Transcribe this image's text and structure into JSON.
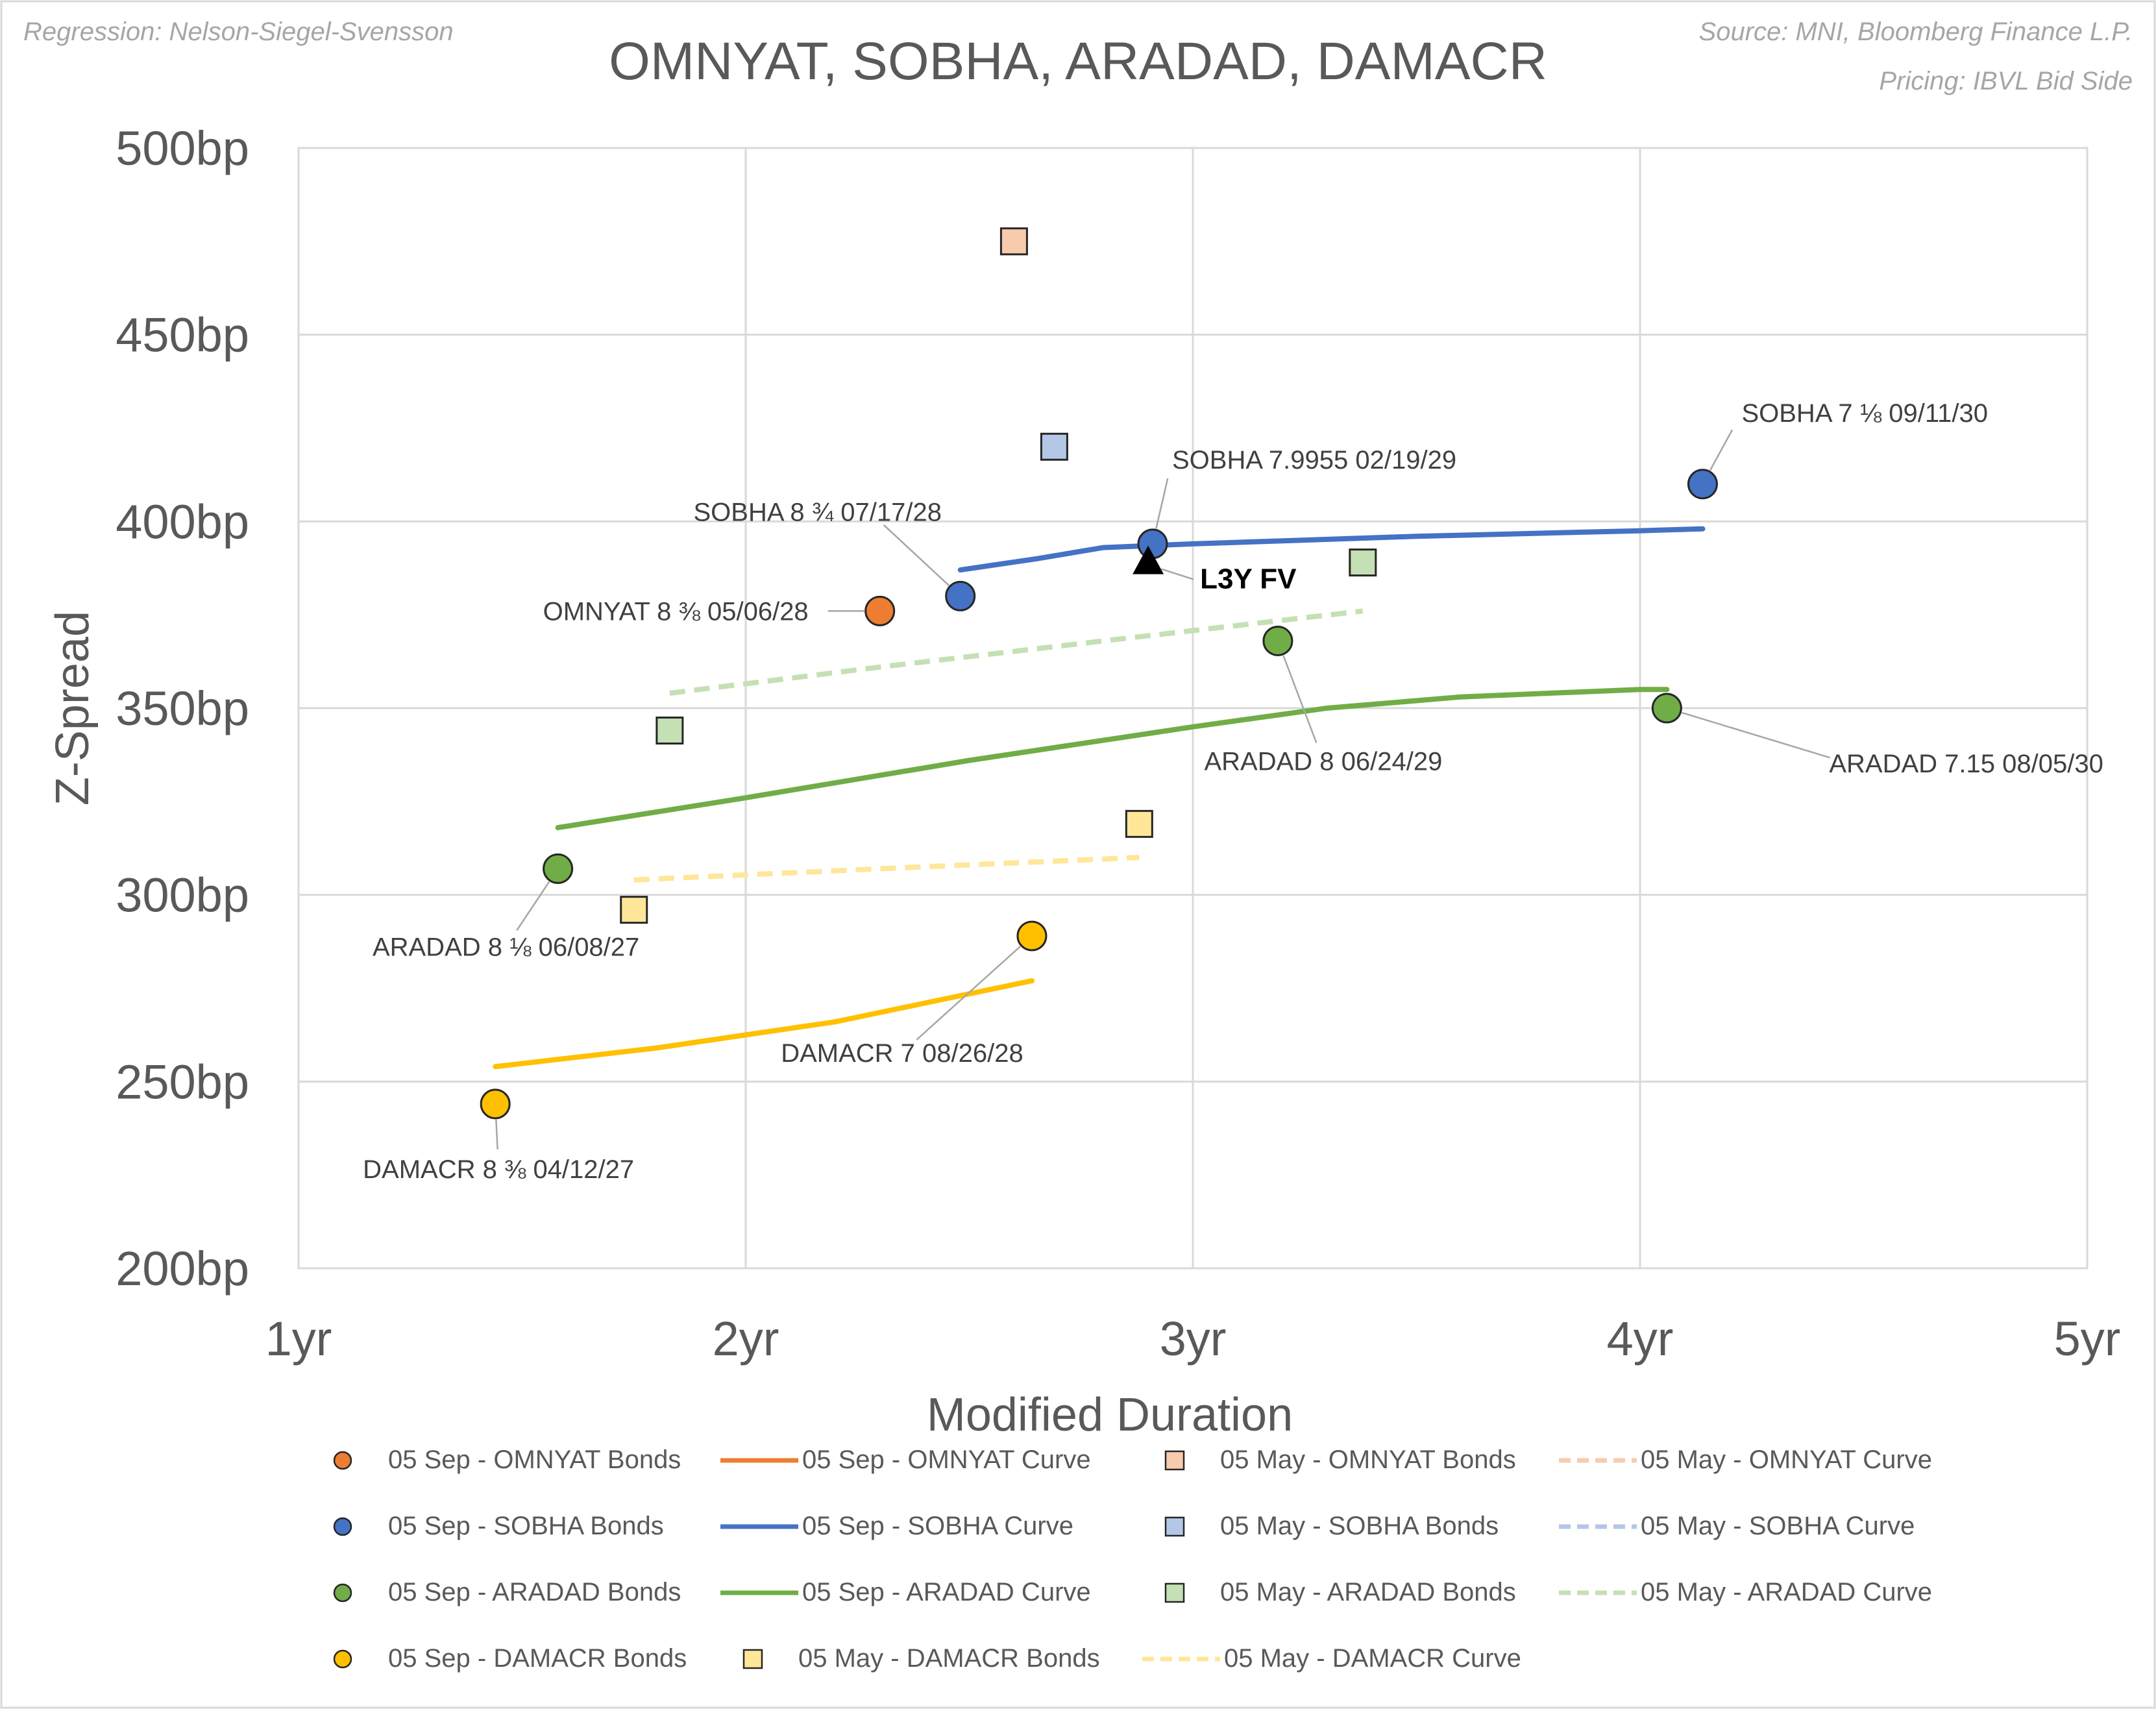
{
  "header": {
    "regression_note": "Regression: Nelson-Siegel-Svensson",
    "source_note": "Source: MNI, Bloomberg Finance L.P.",
    "pricing_note": "Pricing: IBVL Bid Side"
  },
  "chart_data": {
    "type": "scatter",
    "title": "OMNYAT, SOBHA, ARADAD, DAMACR",
    "xlabel": "Modified Duration",
    "ylabel": "Z-Spread",
    "xlim": [
      1,
      5
    ],
    "ylim": [
      200,
      500
    ],
    "grid": true,
    "x_ticks": [
      {
        "value": 1,
        "label": "1yr"
      },
      {
        "value": 2,
        "label": "2yr"
      },
      {
        "value": 3,
        "label": "3yr"
      },
      {
        "value": 4,
        "label": "4yr"
      },
      {
        "value": 5,
        "label": "5yr"
      }
    ],
    "y_ticks": [
      {
        "value": 200,
        "label": "200bp"
      },
      {
        "value": 250,
        "label": "250bp"
      },
      {
        "value": 300,
        "label": "300bp"
      },
      {
        "value": 350,
        "label": "350bp"
      },
      {
        "value": 400,
        "label": "400bp"
      },
      {
        "value": 450,
        "label": "450bp"
      },
      {
        "value": 500,
        "label": "500bp"
      }
    ],
    "colors": {
      "OMNYAT": "#ed7d31",
      "OMNYAT_light": "#f8cbad",
      "SOBHA": "#4472c4",
      "SOBHA_light": "#b4c7e7",
      "ARADAD": "#70ad47",
      "ARADAD_light": "#c5e0b4",
      "DAMACR": "#ffc000",
      "DAMACR_light": "#ffe699"
    },
    "sep_bonds": [
      {
        "issuer": "OMNYAT",
        "name": "OMNYAT 8 ⅜ 05/06/28",
        "x": 2.3,
        "y": 376,
        "label_dx": -110,
        "label_dy": 0
      },
      {
        "issuer": "SOBHA",
        "name": "SOBHA 8 ¾ 07/17/28",
        "x": 2.48,
        "y": 380,
        "label_dx": -140,
        "label_dy": -130
      },
      {
        "issuer": "SOBHA",
        "name": "SOBHA 7.9955 02/19/29",
        "x": 2.91,
        "y": 394,
        "label_dx": 30,
        "label_dy": -130
      },
      {
        "issuer": "SOBHA",
        "name": "SOBHA 7 ⅛ 09/11/30",
        "x": 4.14,
        "y": 410,
        "label_dx": 60,
        "label_dy": -110
      },
      {
        "issuer": "ARADAD",
        "name": "ARADAD 8 06/24/29",
        "x": 3.19,
        "y": 368,
        "label_dx": 70,
        "label_dy": 185
      },
      {
        "issuer": "ARADAD",
        "name": "ARADAD 7.15 08/05/30",
        "x": 4.06,
        "y": 350,
        "label_dx": 280,
        "label_dy": 85
      },
      {
        "issuer": "ARADAD",
        "name": "ARADAD 8 ⅛ 06/08/27",
        "x": 1.58,
        "y": 307,
        "label_dx": -80,
        "label_dy": 120
      },
      {
        "issuer": "DAMACR",
        "name": "DAMACR 7 08/26/28",
        "x": 2.64,
        "y": 289,
        "label_dx": -200,
        "label_dy": 180
      },
      {
        "issuer": "DAMACR",
        "name": "DAMACR 8 ⅜ 04/12/27",
        "x": 1.44,
        "y": 244,
        "label_dx": 5,
        "label_dy": 100
      }
    ],
    "may_bonds": [
      {
        "issuer": "OMNYAT",
        "x": 2.6,
        "y": 475
      },
      {
        "issuer": "SOBHA",
        "x": 2.69,
        "y": 420
      },
      {
        "issuer": "ARADAD",
        "x": 3.38,
        "y": 389
      },
      {
        "issuer": "ARADAD",
        "x": 1.83,
        "y": 344
      },
      {
        "issuer": "DAMACR",
        "x": 2.88,
        "y": 319
      },
      {
        "issuer": "DAMACR",
        "x": 1.75,
        "y": 296
      }
    ],
    "sep_curves": [
      {
        "issuer": "SOBHA",
        "points": [
          [
            2.48,
            387
          ],
          [
            2.65,
            390
          ],
          [
            2.8,
            393
          ],
          [
            3.0,
            394
          ],
          [
            3.5,
            396
          ],
          [
            4.0,
            397.5
          ],
          [
            4.14,
            398
          ]
        ]
      },
      {
        "issuer": "ARADAD",
        "points": [
          [
            1.58,
            318
          ],
          [
            2.0,
            326
          ],
          [
            2.5,
            336
          ],
          [
            3.0,
            345
          ],
          [
            3.3,
            350
          ],
          [
            3.6,
            353
          ],
          [
            4.0,
            355
          ],
          [
            4.06,
            355
          ]
        ]
      },
      {
        "issuer": "DAMACR",
        "points": [
          [
            1.44,
            254
          ],
          [
            1.8,
            259
          ],
          [
            2.2,
            266
          ],
          [
            2.64,
            277
          ]
        ]
      }
    ],
    "may_curves": [
      {
        "issuer": "ARADAD",
        "points": [
          [
            1.83,
            354
          ],
          [
            2.3,
            361
          ],
          [
            2.8,
            368
          ],
          [
            3.38,
            376
          ]
        ]
      },
      {
        "issuer": "DAMACR",
        "points": [
          [
            1.75,
            304
          ],
          [
            2.3,
            307
          ],
          [
            2.88,
            310
          ]
        ]
      }
    ],
    "fair_value": {
      "label": "L3Y FV",
      "x": 2.9,
      "y": 389
    },
    "legend": [
      {
        "label": "05 Sep - OMNYAT Bonds",
        "kind": "circle",
        "issuer": "OMNYAT"
      },
      {
        "label": "05 Sep - OMNYAT Curve",
        "kind": "line",
        "issuer": "OMNYAT"
      },
      {
        "label": "05 May - OMNYAT Bonds",
        "kind": "square",
        "issuer": "OMNYAT"
      },
      {
        "label": "05 May - OMNYAT Curve",
        "kind": "dash",
        "issuer": "OMNYAT"
      },
      {
        "label": "05 Sep - SOBHA Bonds",
        "kind": "circle",
        "issuer": "SOBHA"
      },
      {
        "label": "05 Sep - SOBHA Curve",
        "kind": "line",
        "issuer": "SOBHA"
      },
      {
        "label": "05 May - SOBHA Bonds",
        "kind": "square",
        "issuer": "SOBHA"
      },
      {
        "label": "05 May - SOBHA Curve",
        "kind": "dash",
        "issuer": "SOBHA"
      },
      {
        "label": "05 Sep - ARADAD Bonds",
        "kind": "circle",
        "issuer": "ARADAD"
      },
      {
        "label": "05 Sep - ARADAD Curve",
        "kind": "line",
        "issuer": "ARADAD"
      },
      {
        "label": "05 May - ARADAD Bonds",
        "kind": "square",
        "issuer": "ARADAD"
      },
      {
        "label": "05 May - ARADAD Curve",
        "kind": "dash",
        "issuer": "ARADAD"
      },
      {
        "label": "05 Sep - DAMACR Bonds",
        "kind": "circle",
        "issuer": "DAMACR"
      },
      {
        "label": "05 May - DAMACR Bonds",
        "kind": "square",
        "issuer": "DAMACR"
      },
      {
        "label": "05 May - DAMACR Curve",
        "kind": "dash",
        "issuer": "DAMACR"
      }
    ]
  }
}
